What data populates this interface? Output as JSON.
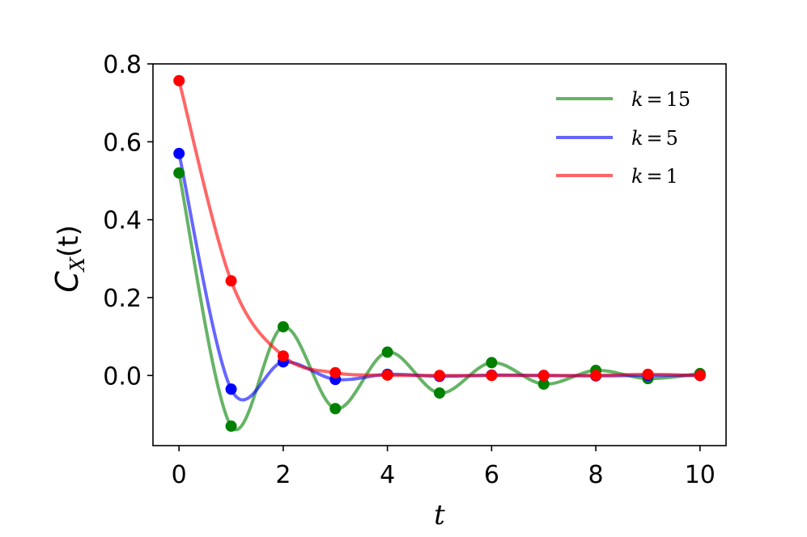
{
  "chart_data": {
    "type": "line",
    "xlabel": "t",
    "ylabel": "C_X(t)",
    "xlim": [
      -0.5,
      10.5
    ],
    "ylim": [
      -0.18,
      0.8
    ],
    "xticks": [
      "0",
      "2",
      "4",
      "6",
      "8",
      "10"
    ],
    "yticks": [
      "0.0",
      "0.2",
      "0.4",
      "0.6",
      "0.8"
    ],
    "grid": false,
    "legend_position": "top-right",
    "series": [
      {
        "name": "k = 15",
        "color": "#008000",
        "x": [
          0,
          1,
          2,
          3,
          4,
          5,
          6,
          7,
          8,
          9,
          10
        ],
        "y": [
          0.52,
          -0.13,
          0.125,
          -0.085,
          0.06,
          -0.045,
          0.033,
          -0.022,
          0.013,
          -0.008,
          0.005
        ]
      },
      {
        "name": "k = 5",
        "color": "#0000ff",
        "x": [
          0,
          1,
          2,
          3,
          4,
          5,
          6,
          7,
          8,
          9,
          10
        ],
        "y": [
          0.57,
          -0.035,
          0.035,
          -0.01,
          0.003,
          -0.002,
          0.001,
          0.0,
          -0.001,
          0.0,
          0.0
        ]
      },
      {
        "name": "k = 1",
        "color": "#ff0000",
        "x": [
          0,
          1,
          2,
          3,
          4,
          5,
          6,
          7,
          8,
          9,
          10
        ],
        "y": [
          0.757,
          0.243,
          0.05,
          0.007,
          0.001,
          0.0,
          0.0,
          0.0,
          0.0,
          0.003,
          0.0
        ]
      }
    ]
  },
  "legend": {
    "entries": [
      {
        "var": "k",
        "op": "=",
        "val": "15"
      },
      {
        "var": "k",
        "op": "=",
        "val": "5"
      },
      {
        "var": "k",
        "op": "=",
        "val": "1"
      }
    ]
  },
  "axes": {
    "xlabel": "t",
    "ylabel_main": "C",
    "ylabel_sub": "X",
    "ylabel_arg": "(t)"
  }
}
